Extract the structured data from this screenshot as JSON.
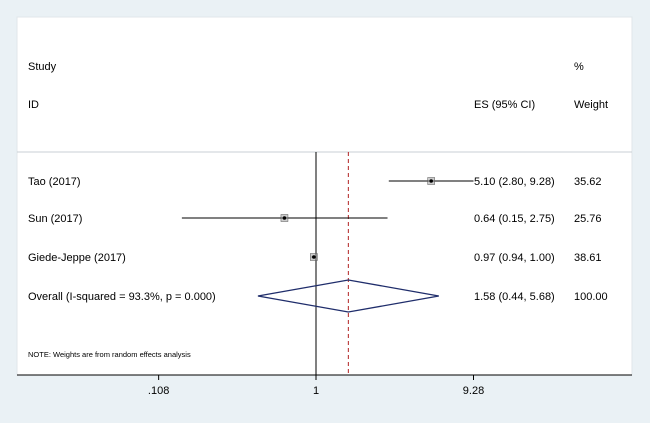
{
  "chart_data": {
    "type": "forest",
    "title": "",
    "header": {
      "study_line1": "Study",
      "study_line2": "ID",
      "es_label": "ES (95% CI)",
      "weight_line1": "%",
      "weight_line2": "Weight"
    },
    "studies": [
      {
        "label": "Tao (2017)",
        "es": 5.1,
        "lo": 2.8,
        "hi": 9.28,
        "es_text": "5.10 (2.80, 9.28)",
        "weight": "35.62"
      },
      {
        "label": "Sun (2017)",
        "es": 0.64,
        "lo": 0.15,
        "hi": 2.75,
        "es_text": "0.64 (0.15, 2.75)",
        "weight": "25.76"
      },
      {
        "label": "Giede-Jeppe (2017)",
        "es": 0.97,
        "lo": 0.94,
        "hi": 1.0,
        "es_text": "0.97 (0.94, 1.00)",
        "weight": "38.61"
      }
    ],
    "overall": {
      "label": "Overall  (I-squared = 93.3%, p = 0.000)",
      "es": 1.58,
      "lo": 0.44,
      "hi": 5.68,
      "es_text": "1.58 (0.44, 5.68)",
      "weight": "100.00"
    },
    "note": "NOTE: Weights are from random effects analysis",
    "x_scale": "log",
    "x_ticks": [
      {
        "value": 0.108,
        "label": ".108"
      },
      {
        "value": 1,
        "label": "1"
      },
      {
        "value": 9.28,
        "label": "9.28"
      }
    ],
    "null_value": 1,
    "colors": {
      "background": "#eaf1f5",
      "panel": "#ffffff",
      "ci_line": "#000000",
      "diamond": "#1f2d6b",
      "overall_line": "#b22222"
    }
  }
}
